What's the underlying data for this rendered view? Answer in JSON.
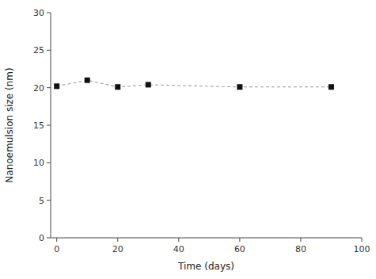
{
  "chart_data": {
    "type": "line",
    "xlabel": "Time (days)",
    "ylabel": "Nanoemulsion size (nm)",
    "x": [
      0,
      10,
      20,
      30,
      60,
      90
    ],
    "values": [
      20.2,
      21.0,
      20.1,
      20.4,
      20.1,
      20.1
    ],
    "color": "#aaaaaa",
    "marker": "square",
    "line_style": "dashed",
    "xlim": [
      -2,
      100
    ],
    "ylim": [
      0,
      30
    ],
    "xticks": [
      0,
      20,
      40,
      60,
      80,
      100
    ],
    "yticks": [
      0,
      5,
      10,
      15,
      20,
      25,
      30
    ]
  }
}
